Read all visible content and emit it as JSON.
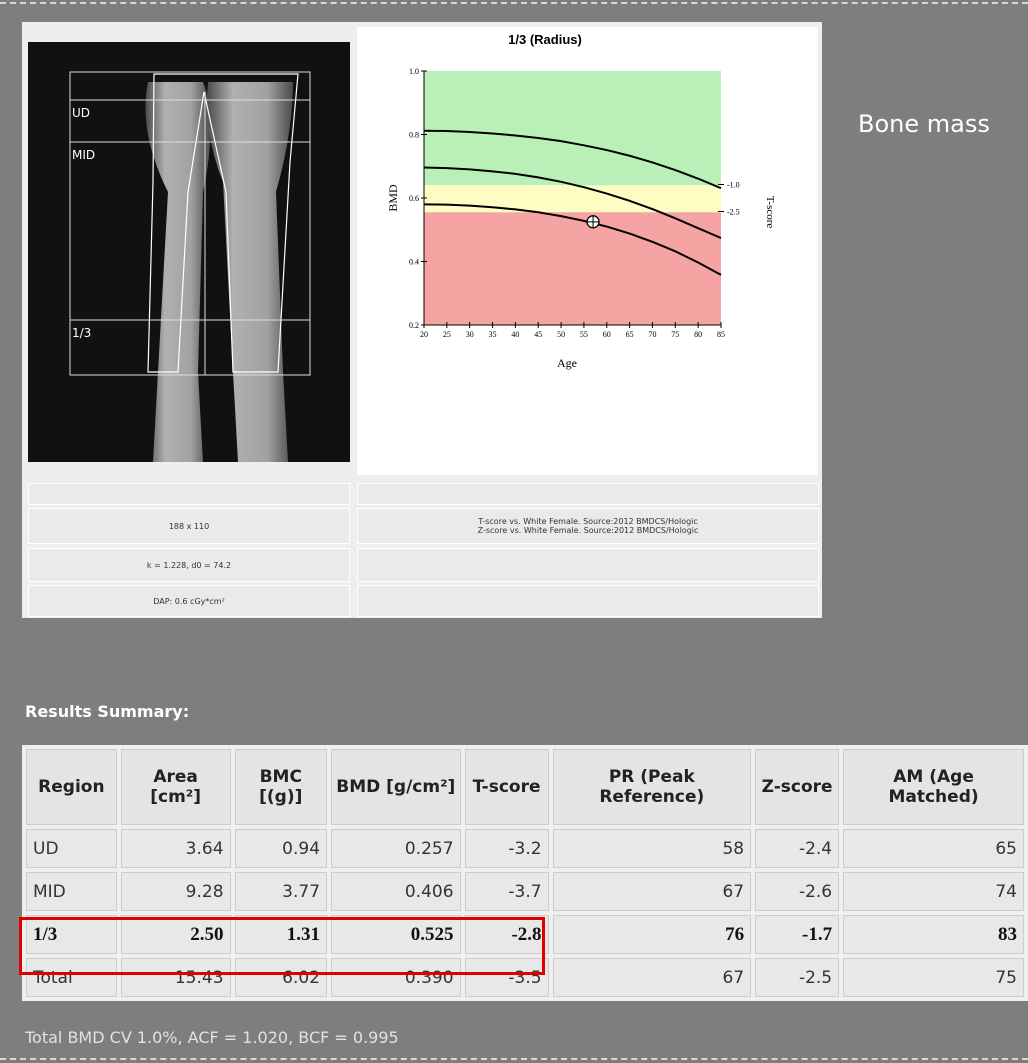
{
  "image_panel": {
    "regions": [
      "UD",
      "MID",
      "1/3"
    ],
    "info": [
      "188 x 110",
      "k = 1.228, d0 = 74.2",
      "DAP: 0.6 cGy*cm²"
    ]
  },
  "chart_data": {
    "type": "line",
    "title": "1/3 (Radius)",
    "x_label": "Age",
    "y_label": "BMD",
    "y2_label": "T-score",
    "x": [
      20,
      25,
      30,
      35,
      40,
      45,
      50,
      55,
      60,
      65,
      70,
      75,
      80,
      85
    ],
    "xlim": [
      20,
      85
    ],
    "xticks": [
      20,
      25,
      30,
      35,
      40,
      45,
      50,
      55,
      60,
      65,
      70,
      75,
      80,
      85
    ],
    "ylim": [
      0.2,
      1.0
    ],
    "yticks": [
      {
        "value": 0.2,
        "label": "0.2"
      },
      {
        "value": 0.4,
        "label": "0.4"
      },
      {
        "value": 0.6,
        "label": "0.6"
      },
      {
        "value": 0.8,
        "label": "0.8"
      },
      {
        "value": 1.0,
        "label": "1.0"
      }
    ],
    "y2lim": [
      -8.8,
      5.3
    ],
    "y2ticks": [
      {
        "value": -1,
        "label": "-1.0"
      },
      {
        "value": -2.5,
        "label": "-2.5"
      }
    ],
    "zones": [
      {
        "from": 0.64,
        "to": 1.0,
        "color": "#b8f0b8"
      },
      {
        "from": 0.555,
        "to": 0.64,
        "color": "#fdfcc2"
      },
      {
        "from": 0.2,
        "to": 0.555,
        "color": "#f5a3a3"
      }
    ],
    "series": [
      {
        "color": "#000000",
        "values": [
          0.812,
          0.811,
          0.808,
          0.803,
          0.797,
          0.789,
          0.779,
          0.766,
          0.751,
          0.733,
          0.712,
          0.688,
          0.661,
          0.631
        ]
      },
      {
        "color": "#000000",
        "values": [
          0.696,
          0.694,
          0.69,
          0.684,
          0.676,
          0.665,
          0.651,
          0.634,
          0.614,
          0.591,
          0.565,
          0.536,
          0.505,
          0.474
        ]
      },
      {
        "color": "#000000",
        "values": [
          0.58,
          0.579,
          0.576,
          0.571,
          0.564,
          0.555,
          0.543,
          0.528,
          0.51,
          0.488,
          0.462,
          0.432,
          0.397,
          0.358
        ]
      }
    ],
    "patient": {
      "age": 57,
      "bmd": 0.525
    }
  },
  "source": [
    "T-score vs. White Female. Source:2012 BMDCS/Hologic",
    "Z-score vs. White Female. Source:2012 BMDCS/Hologic"
  ],
  "side_label": "Bone mass",
  "results": {
    "title": "Results Summary:",
    "columns": [
      "Region",
      "Area [cm²]",
      "BMC [(g)]",
      "BMD [g/cm²]",
      "T-score",
      "PR (Peak Reference)",
      "Z-score",
      "AM (Age Matched)"
    ],
    "rows": [
      [
        "UD",
        "3.64",
        "0.94",
        "0.257",
        "-3.2",
        "58",
        "-2.4",
        "65"
      ],
      [
        "MID",
        "9.28",
        "3.77",
        "0.406",
        "-3.7",
        "67",
        "-2.6",
        "74"
      ],
      [
        "1/3",
        "2.50",
        "1.31",
        "0.525",
        "-2.8",
        "76",
        "-1.7",
        "83"
      ],
      [
        "Total",
        "15.43",
        "6.02",
        "0.390",
        "-3.5",
        "67",
        "-2.5",
        "75"
      ]
    ]
  },
  "footer": "Total BMD CV 1.0%, ACF = 1.020, BCF = 0.995"
}
